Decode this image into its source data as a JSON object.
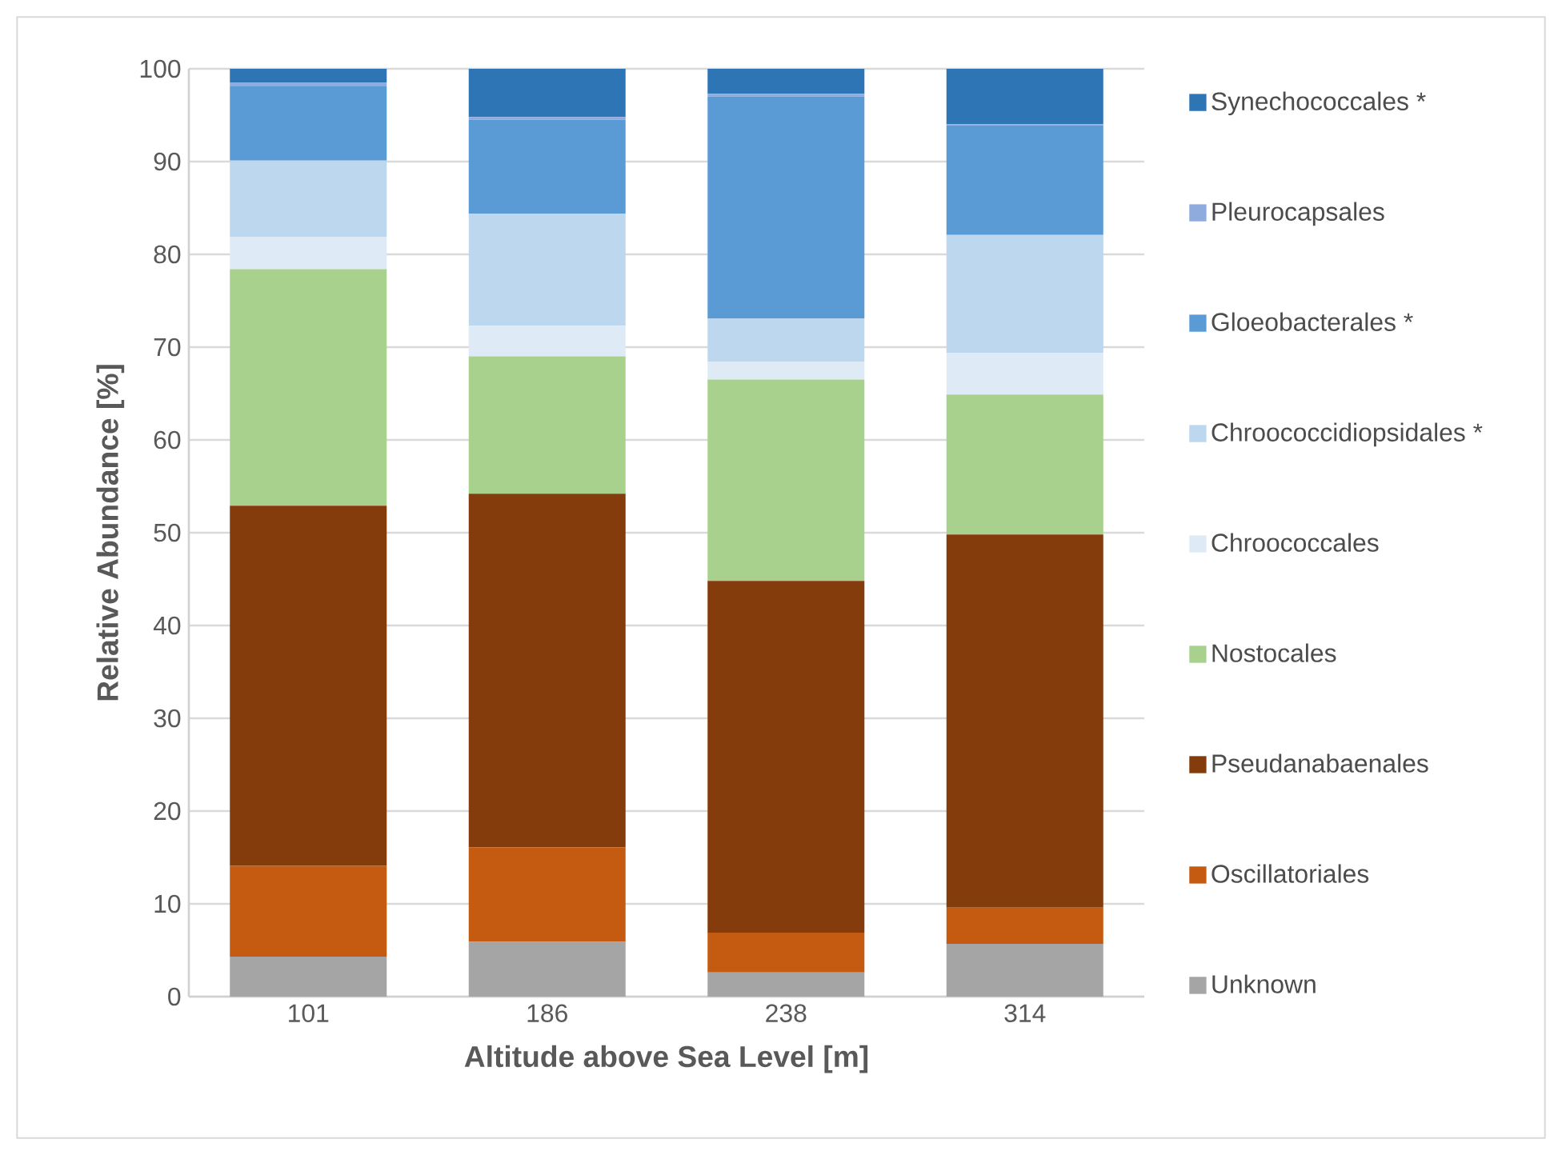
{
  "chart_data": {
    "type": "bar",
    "stacked": true,
    "xlabel": "Altitude above Sea Level [m]",
    "ylabel": "Relative Abundance [%]",
    "categories": [
      "101",
      "186",
      "238",
      "314"
    ],
    "ylim": [
      0,
      100
    ],
    "yticks": [
      0,
      10,
      20,
      30,
      40,
      50,
      60,
      70,
      80,
      90,
      100
    ],
    "grid": "y",
    "legend": "right",
    "series": [
      {
        "name": "Unknown",
        "color": "#a5a5a5",
        "values": [
          4.3,
          5.9,
          2.6,
          5.7
        ]
      },
      {
        "name": "Oscillatoriales",
        "color": "#c55a11",
        "values": [
          9.8,
          10.2,
          4.3,
          3.9
        ]
      },
      {
        "name": "Pseudanabaenales",
        "color": "#843c0c",
        "values": [
          38.8,
          38.1,
          37.9,
          40.2
        ]
      },
      {
        "name": "Nostocales",
        "color": "#a9d18e",
        "values": [
          25.5,
          14.8,
          21.7,
          15.1
        ]
      },
      {
        "name": "Chroococcales",
        "color": "#deebf7",
        "values": [
          3.5,
          3.3,
          1.9,
          4.5
        ]
      },
      {
        "name": "Chroococcidiopsidales *",
        "color": "#bdd7ee",
        "values": [
          8.2,
          12.1,
          4.7,
          12.7
        ]
      },
      {
        "name": "Gloeobacterales *",
        "color": "#5b9bd5",
        "values": [
          8.0,
          10.1,
          23.9,
          11.8
        ]
      },
      {
        "name": "Pleurocapsales",
        "color": "#8faadc",
        "values": [
          0.4,
          0.3,
          0.3,
          0.1
        ]
      },
      {
        "name": "Synechococcales *",
        "color": "#2e75b6",
        "values": [
          1.5,
          5.2,
          2.7,
          6.0
        ]
      }
    ]
  }
}
